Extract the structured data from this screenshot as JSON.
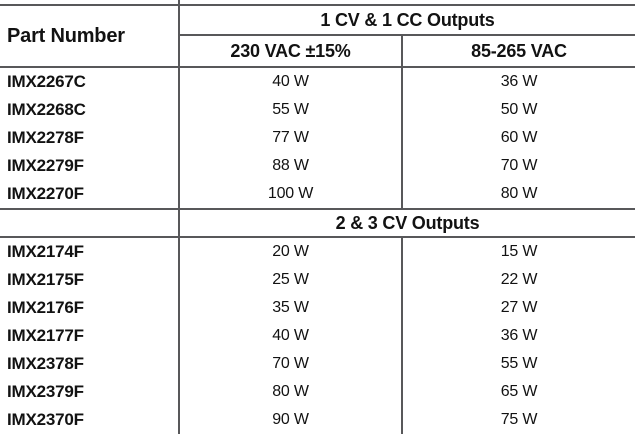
{
  "table": {
    "part_number_header": "Part Number",
    "sections": [
      {
        "title": "1 CV & 1 CC Outputs",
        "columns": [
          "230 VAC ±15%",
          "85-265 VAC"
        ],
        "rows": [
          {
            "part": "IMX2267C",
            "w230": "40 W",
            "w85": "36 W"
          },
          {
            "part": "IMX2268C",
            "w230": "55 W",
            "w85": "50 W"
          },
          {
            "part": "IMX2278F",
            "w230": "77 W",
            "w85": "60 W"
          },
          {
            "part": "IMX2279F",
            "w230": "88 W",
            "w85": "70 W"
          },
          {
            "part": "IMX2270F",
            "w230": "100 W",
            "w85": "80 W"
          }
        ]
      },
      {
        "title": "2 & 3 CV Outputs",
        "rows": [
          {
            "part": "IMX2174F",
            "w230": "20 W",
            "w85": "15 W"
          },
          {
            "part": "IMX2175F",
            "w230": "25 W",
            "w85": "22 W"
          },
          {
            "part": "IMX2176F",
            "w230": "35 W",
            "w85": "27 W"
          },
          {
            "part": "IMX2177F",
            "w230": "40 W",
            "w85": "36 W"
          },
          {
            "part": "IMX2378F",
            "w230": "70 W",
            "w85": "55 W"
          },
          {
            "part": "IMX2379F",
            "w230": "80 W",
            "w85": "65 W"
          },
          {
            "part": "IMX2370F",
            "w230": "90 W",
            "w85": "75 W"
          }
        ]
      }
    ],
    "colors": {
      "rule_line": "#58585a",
      "text": "#121212"
    }
  }
}
